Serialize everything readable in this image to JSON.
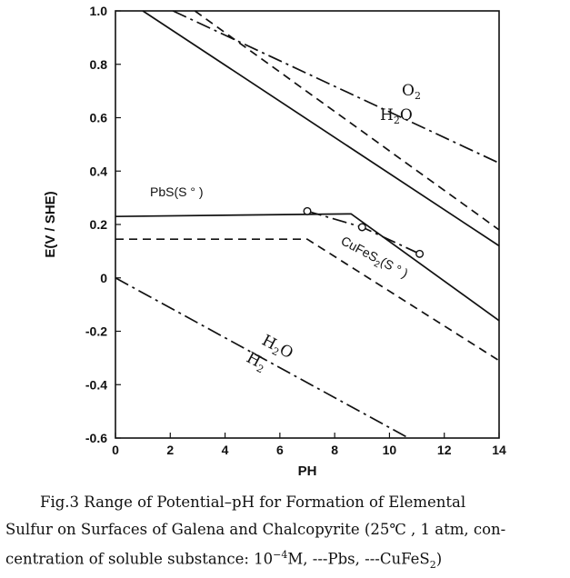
{
  "chart_data": {
    "type": "line",
    "title": "",
    "xlabel": "PH",
    "ylabel": "E(V / SHE)",
    "xlim": [
      0,
      14
    ],
    "ylim": [
      -0.6,
      1.0
    ],
    "xticks": [
      0,
      2,
      4,
      6,
      8,
      10,
      12,
      14
    ],
    "yticks": [
      -0.6,
      -0.4,
      -0.2,
      0,
      0.2,
      0.4,
      0.6,
      0.8,
      1.0
    ],
    "ytick_labels": [
      "-0.6",
      "-0.4",
      "-0.2",
      "0",
      "0.2",
      "0.4",
      "0.6",
      "0.8",
      "1.0"
    ],
    "series": [
      {
        "name": "O2/H2O",
        "style": "dash-dot",
        "x": [
          2.1,
          14
        ],
        "y": [
          1.0,
          0.43
        ]
      },
      {
        "name": "H2O/H2",
        "style": "dash-dot",
        "x": [
          0,
          10.7
        ],
        "y": [
          0.0,
          -0.6
        ]
      },
      {
        "name": "PbS upper (solid)",
        "style": "solid",
        "x": [
          1.0,
          14
        ],
        "y": [
          1.0,
          0.12
        ]
      },
      {
        "name": "CuFeS2 upper (dashed)",
        "style": "dashed",
        "x": [
          2.9,
          14
        ],
        "y": [
          1.0,
          0.18
        ]
      },
      {
        "name": "PbS lower (solid)",
        "style": "solid",
        "x": [
          0,
          8.6,
          14
        ],
        "y": [
          0.23,
          0.24,
          -0.16
        ]
      },
      {
        "name": "CuFeS2 lower (dashed)",
        "style": "dashed",
        "x": [
          0,
          7.0,
          14
        ],
        "y": [
          0.145,
          0.145,
          -0.31
        ]
      },
      {
        "name": "CuFeS2 (S°) points",
        "style": "dash-dot",
        "x": [
          7.0,
          9.0,
          11.1
        ],
        "y": [
          0.25,
          0.19,
          0.09
        ]
      }
    ],
    "points": [
      {
        "x": 7.0,
        "y": 0.25
      },
      {
        "x": 9.0,
        "y": 0.19
      },
      {
        "x": 11.1,
        "y": 0.09
      }
    ],
    "annotations": {
      "o2": "O",
      "o2_sub": "2",
      "h2o_upper": "H",
      "h2o_upper_sub": "2",
      "h2o_upper_tail": "O",
      "pbs": "PbS(S ° )",
      "cufes2": "CuFeS",
      "cufes2_sub": "2",
      "cufes2_tail": "(S ° )",
      "h2o_lower": "H",
      "h2o_lower_sub": "2",
      "h2o_lower_tail": "O",
      "h2_lower": "H",
      "h2_lower_sub": "2"
    }
  },
  "caption": {
    "line1": "Fig.3  Range of Potential–pH for Formation of Elemental",
    "line2": "Sulfur on Surfaces of Galena and Chalcopyrite (25℃ , 1 atm, con-",
    "line3_a": "centration of soluble substance: 10",
    "line3_sup": "−4",
    "line3_b": "M, ---Pbs, ---CuFeS",
    "line3_sub": "2",
    "line3_c": ")"
  }
}
